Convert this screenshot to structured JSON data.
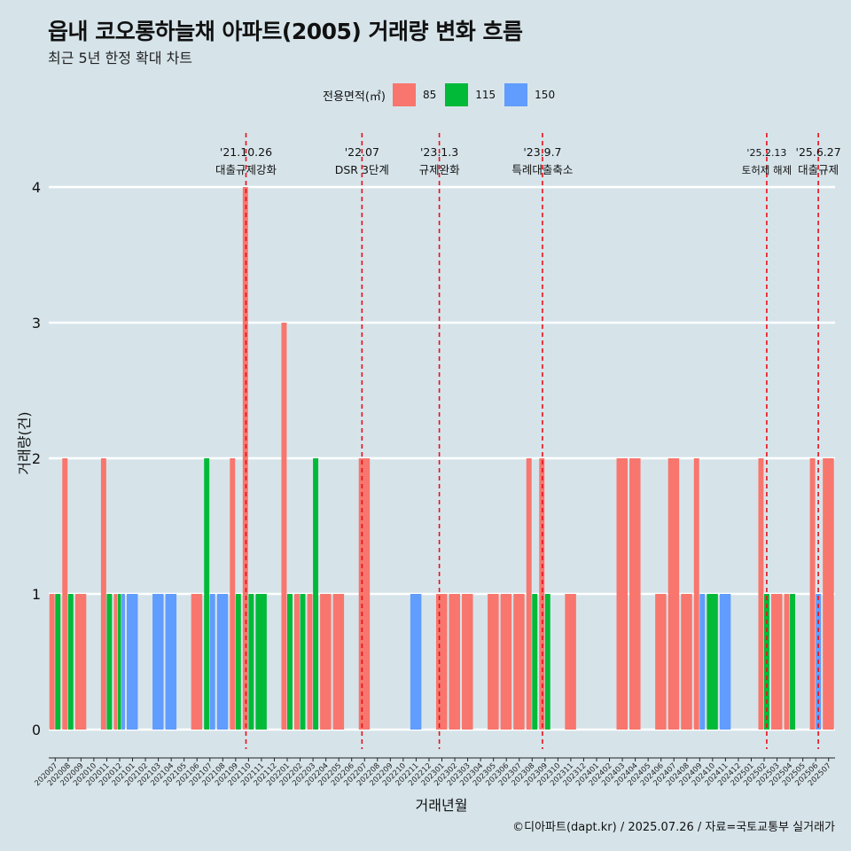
{
  "title": "읍내 코오롱하늘채 아파트(2005) 거래량 변화 흐름",
  "subtitle": "최근 5년 한정 확대 차트",
  "caption": "©디아파트(dapt.kr) / 2025.07.26 / 자료=국토교통부 실거래가",
  "legend": {
    "title": "전용면적(㎡)",
    "items": [
      {
        "label": "85",
        "color": "#F8766D"
      },
      {
        "label": "115",
        "color": "#00BA38"
      },
      {
        "label": "150",
        "color": "#619CFF"
      }
    ]
  },
  "chart_data": {
    "type": "bar",
    "xlabel": "거래년월",
    "ylabel": "거래량(건)",
    "ylim": [
      0,
      4
    ],
    "yticks": [
      0,
      1,
      2,
      3,
      4
    ],
    "categories": [
      "202007",
      "202008",
      "202009",
      "202010",
      "202011",
      "202012",
      "202101",
      "202102",
      "202103",
      "202104",
      "202105",
      "202106",
      "202107",
      "202108",
      "202109",
      "202110",
      "202111",
      "202112",
      "202201",
      "202202",
      "202203",
      "202204",
      "202205",
      "202206",
      "202207",
      "202208",
      "202209",
      "202210",
      "202211",
      "202212",
      "202301",
      "202302",
      "202303",
      "202304",
      "202305",
      "202306",
      "202307",
      "202308",
      "202309",
      "202310",
      "202311",
      "202312",
      "202401",
      "202402",
      "202403",
      "202404",
      "202405",
      "202406",
      "202407",
      "202408",
      "202409",
      "202410",
      "202411",
      "202412",
      "202501",
      "202502",
      "202503",
      "202504",
      "202505",
      "202506",
      "202507"
    ],
    "series": [
      {
        "name": "85",
        "color": "#F8766D",
        "values": [
          1,
          2,
          1,
          0,
          2,
          1,
          0,
          0,
          0,
          0,
          0,
          1,
          0,
          0,
          2,
          4,
          0,
          0,
          3,
          1,
          1,
          1,
          1,
          0,
          2,
          0,
          0,
          0,
          0,
          0,
          1,
          1,
          1,
          0,
          1,
          1,
          1,
          2,
          2,
          0,
          1,
          0,
          0,
          0,
          2,
          2,
          0,
          1,
          2,
          1,
          2,
          0,
          0,
          0,
          0,
          2,
          1,
          1,
          0,
          2,
          2
        ]
      },
      {
        "name": "115",
        "color": "#00BA38",
        "values": [
          1,
          1,
          0,
          0,
          1,
          1,
          0,
          0,
          0,
          0,
          0,
          0,
          2,
          0,
          1,
          1,
          1,
          0,
          1,
          1,
          2,
          0,
          0,
          0,
          0,
          0,
          0,
          0,
          0,
          0,
          0,
          0,
          0,
          0,
          0,
          0,
          0,
          1,
          1,
          0,
          0,
          0,
          0,
          0,
          0,
          0,
          0,
          0,
          0,
          0,
          0,
          1,
          0,
          0,
          0,
          1,
          0,
          1,
          0,
          0,
          0
        ]
      },
      {
        "name": "150",
        "color": "#619CFF",
        "values": [
          0,
          0,
          0,
          0,
          0,
          1,
          1,
          0,
          1,
          1,
          0,
          0,
          1,
          1,
          0,
          0,
          0,
          0,
          0,
          0,
          0,
          0,
          0,
          0,
          0,
          0,
          0,
          0,
          1,
          0,
          0,
          0,
          0,
          0,
          0,
          0,
          0,
          0,
          0,
          0,
          0,
          0,
          0,
          0,
          0,
          0,
          0,
          0,
          0,
          0,
          1,
          0,
          1,
          0,
          0,
          0,
          0,
          0,
          0,
          1,
          0
        ]
      }
    ],
    "annotations": [
      {
        "date": "'21.10.26",
        "label": "대출규제강화",
        "position": 15.3
      },
      {
        "date": "'22.07",
        "label": "DSR 3단계",
        "position": 24.3
      },
      {
        "date": "'23.1.3",
        "label": "규제완화",
        "position": 30.3
      },
      {
        "date": "'23.9.7",
        "label": "특례대출축소",
        "position": 38.3
      },
      {
        "date": "'25.2.13",
        "label": "토허제 해제",
        "position": 55.7
      },
      {
        "date": "'25.6.27",
        "label": "대출규제",
        "position": 59.7
      }
    ]
  }
}
